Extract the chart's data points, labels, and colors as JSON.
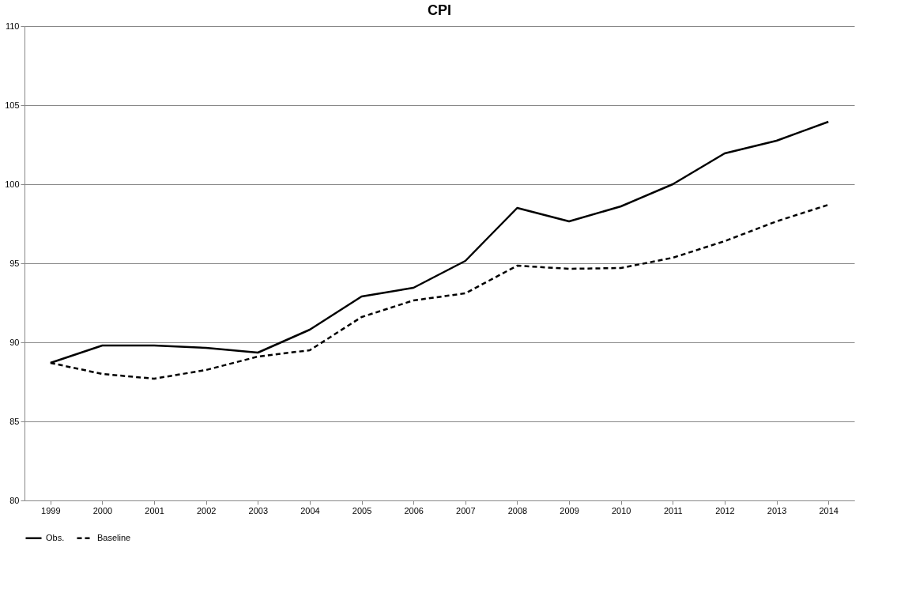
{
  "chart_data": {
    "type": "line",
    "title": "CPI",
    "categories": [
      "1999",
      "2000",
      "2001",
      "2002",
      "2003",
      "2004",
      "2005",
      "2006",
      "2007",
      "2008",
      "2009",
      "2010",
      "2011",
      "2012",
      "2013",
      "2014"
    ],
    "series": [
      {
        "name": "Obs.",
        "color": "#000000",
        "line_style": "solid",
        "values": [
          88.7,
          89.8,
          89.8,
          89.65,
          89.35,
          90.8,
          92.9,
          93.45,
          95.15,
          98.5,
          97.65,
          98.6,
          100.0,
          101.95,
          102.75,
          103.95
        ]
      },
      {
        "name": "Baseline",
        "color": "#000000",
        "line_style": "dashed",
        "values": [
          88.7,
          88.0,
          87.7,
          88.25,
          89.1,
          89.5,
          91.6,
          92.65,
          93.1,
          94.85,
          94.65,
          94.7,
          95.35,
          96.4,
          97.65,
          98.7
        ]
      }
    ],
    "ylim": [
      80,
      110
    ],
    "yticks": [
      80,
      85,
      90,
      95,
      100,
      105,
      110
    ],
    "grid": "y",
    "legend": "bottom",
    "marker": "none"
  }
}
